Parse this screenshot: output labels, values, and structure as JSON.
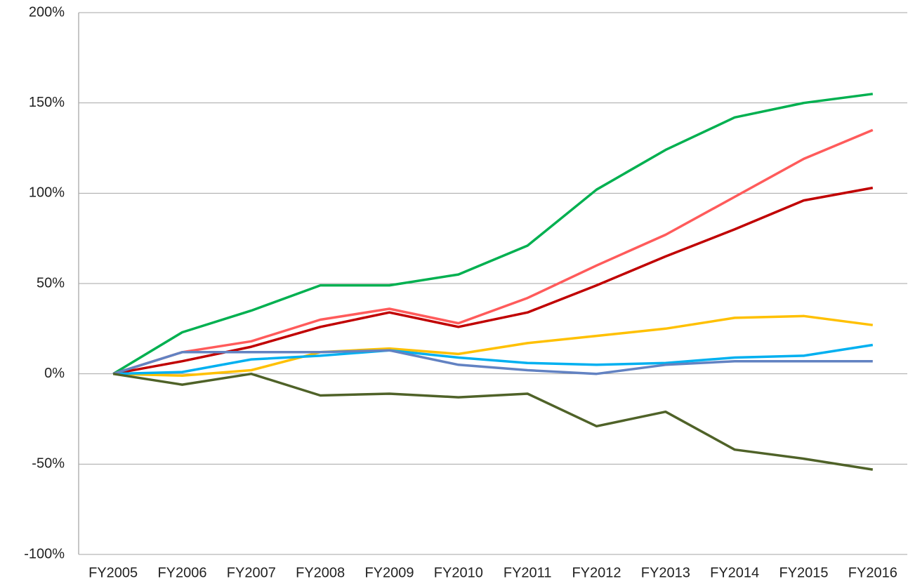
{
  "chart_data": {
    "type": "line",
    "categories": [
      "FY2005",
      "FY2006",
      "FY2007",
      "FY2008",
      "FY2009",
      "FY2010",
      "FY2011",
      "FY2012",
      "FY2013",
      "FY2014",
      "FY2015",
      "FY2016"
    ],
    "series": [
      {
        "color": "#00b050",
        "values": [
          0,
          23,
          35,
          49,
          49,
          55,
          71,
          102,
          124,
          142,
          150,
          155
        ]
      },
      {
        "color": "#ff5b5b",
        "values": [
          0,
          12,
          18,
          30,
          36,
          28,
          42,
          60,
          77,
          98,
          119,
          135
        ]
      },
      {
        "color": "#c00000",
        "values": [
          0,
          7,
          15,
          26,
          34,
          26,
          34,
          49,
          65,
          80,
          96,
          103
        ]
      },
      {
        "color": "#ffc000",
        "values": [
          0,
          -1,
          2,
          12,
          14,
          11,
          17,
          21,
          25,
          31,
          32,
          27
        ]
      },
      {
        "color": "#00b0f0",
        "values": [
          0,
          1,
          8,
          10,
          13,
          9,
          6,
          5,
          6,
          9,
          10,
          16
        ]
      },
      {
        "color": "#6282c2",
        "values": [
          0,
          12,
          12,
          12,
          13,
          5,
          2,
          0,
          5,
          7,
          7,
          7
        ]
      },
      {
        "color": "#4f6228",
        "values": [
          0,
          -6,
          0,
          -12,
          -11,
          -13,
          -11,
          -29,
          -21,
          -42,
          -47,
          -53
        ]
      }
    ],
    "ylim": [
      -100,
      200
    ],
    "yticks": [
      {
        "value": -100,
        "label": "-100%"
      },
      {
        "value": -50,
        "label": "-50%"
      },
      {
        "value": 0,
        "label": "0%"
      },
      {
        "value": 50,
        "label": "50%"
      },
      {
        "value": 100,
        "label": "100%"
      },
      {
        "value": 150,
        "label": "150%"
      },
      {
        "value": 200,
        "label": "200%"
      }
    ],
    "grid": true
  }
}
